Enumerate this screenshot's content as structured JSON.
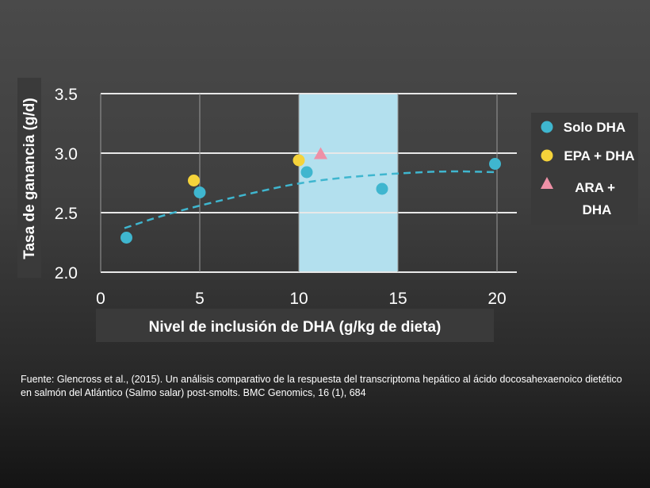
{
  "chart_data": {
    "type": "scatter",
    "xlabel": "Nivel de inclusión de DHA (g/kg de dieta)",
    "ylabel": "Tasa de ganancia (g/d)",
    "xlim": [
      0,
      21
    ],
    "ylim": [
      2.0,
      3.5
    ],
    "xticks": [
      "0",
      "5",
      "10",
      "15",
      "20"
    ],
    "xtick_values": [
      0,
      5,
      10,
      15,
      20
    ],
    "yticks": [
      "2.0",
      "2.5",
      "3.0",
      "3.5"
    ],
    "ytick_values": [
      2.0,
      2.5,
      3.0,
      3.5
    ],
    "grid": true,
    "highlight_band": {
      "x_start": 10,
      "x_end": 15,
      "color": "#b3e0ee"
    },
    "series": [
      {
        "name": "Solo DHA",
        "marker": "circle",
        "color": "#3fb6cf",
        "points": [
          [
            1.3,
            2.29
          ],
          [
            5.0,
            2.67
          ],
          [
            10.4,
            2.84
          ],
          [
            14.2,
            2.7
          ],
          [
            19.9,
            2.91
          ]
        ]
      },
      {
        "name": "EPA + DHA",
        "marker": "circle",
        "color": "#f5d33a",
        "points": [
          [
            4.7,
            2.77
          ],
          [
            10.0,
            2.94
          ]
        ]
      },
      {
        "name": "ARA + DHA",
        "marker": "triangle",
        "color": "#ee90a6",
        "points": [
          [
            11.1,
            2.99
          ]
        ]
      }
    ],
    "trend_line": {
      "style": "dashed",
      "color": "#3fb6cf",
      "points": [
        [
          1.2,
          2.37
        ],
        [
          3,
          2.47
        ],
        [
          5,
          2.56
        ],
        [
          7.5,
          2.66
        ],
        [
          10,
          2.75
        ],
        [
          12.5,
          2.8
        ],
        [
          15,
          2.83
        ],
        [
          17.5,
          2.85
        ],
        [
          20,
          2.84
        ]
      ]
    },
    "legend_position": "right"
  },
  "source": "Fuente: Glencross et al., (2015). Un análisis comparativo de la respuesta del transcriptoma hepático al ácido docosahexaenoico dietético en salmón del Atlántico (Salmo salar) post-smolts. BMC Genomics, 16 (1), 684"
}
